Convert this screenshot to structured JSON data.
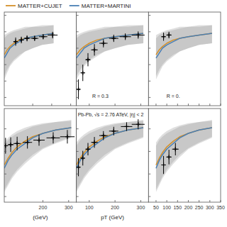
{
  "chart_data": [
    {
      "type": "line",
      "xlim": [
        50,
        430
      ],
      "xticks": [
        200,
        300,
        400
      ],
      "ylim": [
        0.45,
        1.02
      ],
      "yticks": [
        0.5,
        0.6,
        0.7,
        0.8,
        0.9,
        1.0
      ],
      "tick_labels": false,
      "series": [
        {
          "type": "line",
          "color": "#D4902A",
          "x": [
            50,
            65,
            80,
            100,
            130,
            160,
            200,
            250,
            310
          ],
          "values": [
            0.76,
            0.79,
            0.81,
            0.83,
            0.85,
            0.86,
            0.87,
            0.88,
            0.89
          ],
          "upper": [
            0.88,
            0.89,
            0.9,
            0.91,
            0.92,
            0.93,
            0.93,
            0.94,
            0.94
          ],
          "lower": [
            0.63,
            0.67,
            0.7,
            0.73,
            0.76,
            0.78,
            0.8,
            0.82,
            0.83
          ]
        },
        {
          "type": "line",
          "color": "#4A7FB5",
          "x": [
            50,
            65,
            80,
            100,
            130,
            160,
            200,
            250,
            310
          ],
          "values": [
            0.74,
            0.77,
            0.8,
            0.82,
            0.84,
            0.86,
            0.87,
            0.88,
            0.89
          ],
          "upper": [
            0.86,
            0.88,
            0.89,
            0.9,
            0.91,
            0.92,
            0.93,
            0.93,
            0.94
          ],
          "lower": [
            0.61,
            0.65,
            0.69,
            0.72,
            0.75,
            0.78,
            0.8,
            0.82,
            0.83
          ]
        },
        {
          "type": "scatter",
          "marker": "plus",
          "color": "#000000",
          "x": [
            110,
            140,
            170,
            210,
            255,
            305
          ],
          "values": [
            0.84,
            0.85,
            0.86,
            0.86,
            0.87,
            0.88
          ],
          "error": [
            0.025,
            0.02,
            0.018,
            0.016,
            0.016,
            0.02
          ],
          "x_error": [
            12,
            14,
            16,
            20,
            22,
            26
          ]
        }
      ]
    },
    {
      "type": "line",
      "xlim": [
        50,
        330
      ],
      "xticks": [
        100,
        200,
        300
      ],
      "ylim": [
        0.45,
        1.02
      ],
      "yticks": [
        0.5,
        0.6,
        0.7,
        0.8,
        0.9,
        1.0
      ],
      "tick_labels": false,
      "legend": "upper left",
      "annotations": [
        "R = 0.3"
      ],
      "series": [
        {
          "name": "MATTER+CUJET",
          "type": "line",
          "color": "#D4902A",
          "x": [
            50,
            65,
            80,
            100,
            130,
            160,
            200,
            250,
            310
          ],
          "values": [
            0.76,
            0.79,
            0.81,
            0.83,
            0.85,
            0.86,
            0.87,
            0.88,
            0.89
          ],
          "upper": [
            0.88,
            0.89,
            0.9,
            0.91,
            0.92,
            0.93,
            0.93,
            0.94,
            0.94
          ],
          "lower": [
            0.63,
            0.67,
            0.7,
            0.73,
            0.76,
            0.78,
            0.8,
            0.82,
            0.83
          ]
        },
        {
          "name": "MATTER+MARTINI",
          "type": "line",
          "color": "#4A7FB5",
          "x": [
            50,
            65,
            80,
            100,
            130,
            160,
            200,
            250,
            310
          ],
          "values": [
            0.74,
            0.77,
            0.8,
            0.82,
            0.84,
            0.86,
            0.87,
            0.88,
            0.89
          ],
          "upper": [
            0.86,
            0.88,
            0.89,
            0.9,
            0.91,
            0.92,
            0.93,
            0.93,
            0.94
          ],
          "lower": [
            0.61,
            0.65,
            0.69,
            0.72,
            0.75,
            0.78,
            0.8,
            0.82,
            0.83
          ]
        },
        {
          "type": "scatter",
          "marker": "plus",
          "color": "#000000",
          "x": [
            58,
            75,
            95,
            120,
            155,
            195,
            240,
            290
          ],
          "values": [
            0.55,
            0.65,
            0.73,
            0.79,
            0.83,
            0.86,
            0.87,
            0.88
          ],
          "error": [
            0.06,
            0.05,
            0.04,
            0.035,
            0.025,
            0.022,
            0.02,
            0.022
          ],
          "x_error": [
            7,
            8,
            10,
            13,
            16,
            18,
            22,
            25
          ]
        }
      ]
    },
    {
      "type": "line",
      "xlim": [
        15,
        350
      ],
      "xticks": [
        50,
        100,
        150,
        200,
        250,
        300,
        350
      ],
      "ylim": [
        0.45,
        1.02
      ],
      "yticks": [
        0.5,
        0.6,
        0.7,
        0.8,
        0.9,
        1.0
      ],
      "tick_labels": false,
      "annotations": [
        "R = 0."
      ],
      "series": [
        {
          "type": "line",
          "color": "#D4902A",
          "x": [
            50,
            65,
            80,
            100,
            130,
            160,
            200,
            250,
            310
          ],
          "values": [
            0.76,
            0.79,
            0.81,
            0.83,
            0.85,
            0.86,
            0.87,
            0.88,
            0.89
          ],
          "upper": [
            0.88,
            0.89,
            0.9,
            0.91,
            0.92,
            0.93,
            0.93,
            0.94,
            0.94
          ],
          "lower": [
            0.63,
            0.67,
            0.7,
            0.73,
            0.76,
            0.78,
            0.8,
            0.82,
            0.83
          ]
        },
        {
          "type": "line",
          "color": "#4A7FB5",
          "x": [
            50,
            65,
            80,
            100,
            130,
            160,
            200,
            250,
            310
          ],
          "values": [
            0.74,
            0.77,
            0.8,
            0.82,
            0.84,
            0.86,
            0.87,
            0.88,
            0.89
          ],
          "upper": [
            0.86,
            0.88,
            0.89,
            0.9,
            0.91,
            0.92,
            0.93,
            0.93,
            0.94
          ],
          "lower": [
            0.61,
            0.65,
            0.69,
            0.72,
            0.75,
            0.78,
            0.8,
            0.82,
            0.83
          ]
        },
        {
          "type": "scatter",
          "marker": "plus",
          "color": "#000000",
          "x": [
            85,
            110
          ],
          "values": [
            0.87,
            0.88
          ],
          "error": [
            0.025,
            0.02
          ],
          "x_error": [
            10,
            12
          ]
        }
      ]
    },
    {
      "type": "line",
      "xlim": [
        50,
        330
      ],
      "xticks": [
        200,
        300
      ],
      "ylim": [
        0.15,
        0.98
      ],
      "yticks": [
        0.2,
        0.4,
        0.6,
        0.8
      ],
      "tick_labels": "x",
      "xlabel": "(GeV)",
      "series": [
        {
          "type": "line",
          "color": "#D4902A",
          "x": [
            50,
            65,
            80,
            100,
            130,
            160,
            200,
            250,
            310
          ],
          "values": [
            0.48,
            0.54,
            0.59,
            0.64,
            0.69,
            0.73,
            0.76,
            0.79,
            0.81
          ],
          "upper": [
            0.68,
            0.72,
            0.75,
            0.78,
            0.81,
            0.83,
            0.85,
            0.86,
            0.88
          ],
          "lower": [
            0.26,
            0.32,
            0.38,
            0.44,
            0.51,
            0.57,
            0.63,
            0.68,
            0.73
          ]
        },
        {
          "type": "line",
          "color": "#4A7FB5",
          "x": [
            50,
            65,
            80,
            100,
            130,
            160,
            200,
            250,
            310
          ],
          "values": [
            0.45,
            0.52,
            0.57,
            0.62,
            0.67,
            0.72,
            0.76,
            0.79,
            0.81
          ],
          "upper": [
            0.65,
            0.7,
            0.73,
            0.76,
            0.79,
            0.82,
            0.84,
            0.86,
            0.87
          ],
          "lower": [
            0.24,
            0.3,
            0.36,
            0.42,
            0.49,
            0.55,
            0.62,
            0.67,
            0.72
          ]
        },
        {
          "type": "scatter",
          "marker": "plus",
          "color": "#000000",
          "x": [
            55,
            75,
            100,
            140,
            185,
            240,
            295
          ],
          "values": [
            0.65,
            0.66,
            0.67,
            0.68,
            0.7,
            0.72,
            0.73
          ],
          "error": [
            0.07,
            0.065,
            0.06,
            0.055,
            0.05,
            0.05,
            0.06
          ],
          "x_error": [
            10,
            12,
            14,
            18,
            22,
            26,
            28
          ]
        }
      ]
    },
    {
      "type": "line",
      "xlim": [
        50,
        330
      ],
      "xticks": [
        100,
        200,
        300
      ],
      "ylim": [
        0.15,
        0.98
      ],
      "yticks": [
        0.2,
        0.4,
        0.6,
        0.8
      ],
      "tick_labels": "x",
      "xlabel": "pT (GeV)",
      "annotations": [
        "Pb-Pb, √s = 2.76 ATeV, |η| < 2"
      ],
      "series": [
        {
          "type": "line",
          "color": "#D4902A",
          "x": [
            50,
            65,
            80,
            100,
            130,
            160,
            200,
            250,
            310
          ],
          "values": [
            0.48,
            0.54,
            0.59,
            0.64,
            0.69,
            0.73,
            0.76,
            0.79,
            0.81
          ],
          "upper": [
            0.68,
            0.72,
            0.75,
            0.78,
            0.81,
            0.83,
            0.85,
            0.86,
            0.88
          ],
          "lower": [
            0.26,
            0.32,
            0.38,
            0.44,
            0.51,
            0.57,
            0.63,
            0.68,
            0.73
          ]
        },
        {
          "type": "line",
          "color": "#4A7FB5",
          "x": [
            50,
            65,
            80,
            100,
            130,
            160,
            200,
            250,
            310
          ],
          "values": [
            0.45,
            0.52,
            0.57,
            0.62,
            0.67,
            0.72,
            0.76,
            0.79,
            0.81
          ],
          "upper": [
            0.65,
            0.7,
            0.73,
            0.76,
            0.79,
            0.82,
            0.84,
            0.86,
            0.87
          ],
          "lower": [
            0.24,
            0.3,
            0.36,
            0.42,
            0.49,
            0.55,
            0.62,
            0.67,
            0.72
          ]
        },
        {
          "type": "scatter",
          "marker": "plus",
          "color": "#000000",
          "x": [
            58,
            75,
            95,
            120,
            155,
            195,
            245,
            290
          ],
          "values": [
            0.46,
            0.54,
            0.62,
            0.68,
            0.74,
            0.78,
            0.82,
            0.84
          ],
          "error": [
            0.08,
            0.065,
            0.055,
            0.048,
            0.04,
            0.038,
            0.038,
            0.045
          ],
          "x_error": [
            7,
            8,
            10,
            13,
            16,
            18,
            22,
            25
          ]
        }
      ]
    },
    {
      "type": "line",
      "xlim": [
        15,
        350
      ],
      "xticks": [
        50,
        100,
        150,
        200,
        250,
        300,
        350
      ],
      "ylim": [
        0.15,
        0.98
      ],
      "yticks": [
        0.2,
        0.4,
        0.6,
        0.8
      ],
      "tick_labels": "x",
      "series": [
        {
          "type": "line",
          "color": "#D4902A",
          "x": [
            50,
            65,
            80,
            100,
            130,
            160,
            200,
            250,
            310
          ],
          "values": [
            0.48,
            0.54,
            0.59,
            0.64,
            0.69,
            0.73,
            0.76,
            0.79,
            0.81
          ],
          "upper": [
            0.68,
            0.72,
            0.75,
            0.78,
            0.81,
            0.83,
            0.85,
            0.86,
            0.88
          ],
          "lower": [
            0.26,
            0.32,
            0.38,
            0.44,
            0.51,
            0.57,
            0.63,
            0.68,
            0.73
          ]
        },
        {
          "type": "line",
          "color": "#4A7FB5",
          "x": [
            50,
            65,
            80,
            100,
            130,
            160,
            200,
            250,
            310
          ],
          "values": [
            0.45,
            0.52,
            0.57,
            0.62,
            0.67,
            0.72,
            0.76,
            0.79,
            0.81
          ],
          "upper": [
            0.65,
            0.7,
            0.73,
            0.76,
            0.79,
            0.82,
            0.84,
            0.86,
            0.87
          ],
          "lower": [
            0.24,
            0.3,
            0.36,
            0.42,
            0.49,
            0.55,
            0.62,
            0.67,
            0.72
          ]
        },
        {
          "type": "scatter",
          "marker": "plus",
          "color": "#000000",
          "x": [
            85,
            110,
            140
          ],
          "values": [
            0.48,
            0.55,
            0.62
          ],
          "error": [
            0.08,
            0.065,
            0.055
          ],
          "x_error": [
            10,
            12,
            15
          ]
        }
      ]
    }
  ]
}
